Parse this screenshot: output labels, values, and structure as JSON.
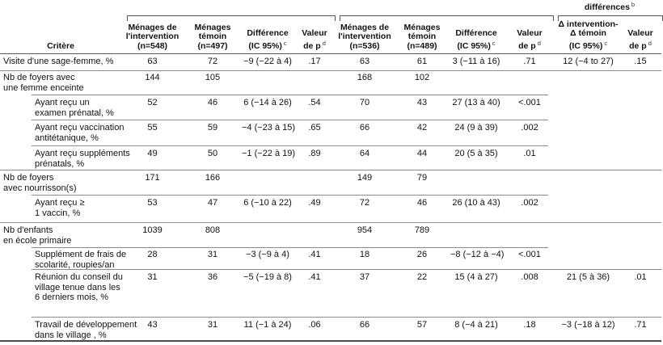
{
  "spanner": {
    "text": "différences",
    "sup": "b"
  },
  "header": {
    "criterion": "Critère",
    "g1_int": "Ménages de\nl'intervention\n(n=548)",
    "g1_tem": "Ménages\ntémoin\n(n=497)",
    "g1_diff": "Différence\n(IC 95%)",
    "g1_diff_sup": "c",
    "g1_p": "Valeur\nde p",
    "g1_p_sup": "d",
    "g2_int": "Ménages de\nl'intervention\n(n=536)",
    "g2_tem": "Ménages\ntémoin\n(n=489)",
    "g2_diff": "Différence\n(IC 95%)",
    "g2_diff_sup": "c",
    "g2_p": "Valeur\nde p",
    "g2_p_sup": "d",
    "g3_dd": "Δ intervention-\nΔ témoin\n(IC 95%)",
    "g3_dd_sup": "c",
    "g3_p": "Valeur\nde p",
    "g3_p_sup": "d"
  },
  "rows": [
    {
      "label": "Visite d'une sage-femme, %",
      "c": [
        "63",
        "72",
        "−9 (−22 à 4)",
        ".17",
        "63",
        "61",
        "3 (−11 à 16)",
        ".71",
        "12 (−4 to 27)",
        ".15"
      ]
    },
    {
      "label": "Nb de foyers avec\nune femme enceinte",
      "c": [
        "144",
        "105",
        "",
        "",
        "168",
        "102",
        "",
        "",
        "",
        ""
      ]
    },
    {
      "label": "Ayant reçu un\nexamen prénatal, %",
      "c": [
        "52",
        "46",
        "6 (−14 à 26)",
        ".54",
        "70",
        "43",
        "27 (13 à 40)",
        "<.001",
        "",
        ""
      ]
    },
    {
      "label": "Ayant reçu vaccination\nantitétanique, %",
      "c": [
        "55",
        "59",
        "−4 (−23 à 15)",
        ".65",
        "66",
        "42",
        "24 (9 à 39)",
        ".002",
        "",
        ""
      ]
    },
    {
      "label": "Ayant reçu suppléments\nprénatals, %",
      "c": [
        "49",
        "50",
        "−1 (−22 à 19)",
        ".89",
        "64",
        "44",
        "20 (5 à 35)",
        ".01",
        "",
        ""
      ]
    },
    {
      "label": "Nb de foyers\navec nourrisson(s)",
      "c": [
        "171",
        "166",
        "",
        "",
        "149",
        "79",
        "",
        "",
        "",
        ""
      ]
    },
    {
      "label": "Ayant reçu ≥\n1 vaccin, %",
      "c": [
        "53",
        "47",
        "6 (−10 à 22)",
        ".49",
        "72",
        "46",
        "26 (10 à 43)",
        ".002",
        "",
        ""
      ]
    },
    {
      "label": "Nb d'enfants\nen école primaire",
      "c": [
        "1039",
        "808",
        "",
        "",
        "954",
        "789",
        "",
        "",
        "",
        ""
      ]
    },
    {
      "label": "Supplément de frais de\nscolarité, roupies/an",
      "c": [
        "28",
        "31",
        "−3 (−9 à 4)",
        ".41",
        "18",
        "26",
        "−8 (−12 à −4)",
        "<.001",
        "",
        ""
      ]
    },
    {
      "label": "Réunion du conseil du\nvillage tenue dans les\n6 derniers mois, %",
      "c": [
        "31",
        "36",
        "−5 (−19 à 8)",
        ".41",
        "37",
        "22",
        "15 (4 à 27)",
        ".008",
        "21 (5 à 36)",
        ".01"
      ]
    },
    {
      "label": "Travail de développement\ndans le village , %",
      "c": [
        "43",
        "31",
        "11 (−1 à 24)",
        ".06",
        "66",
        "57",
        "8 (−4 à 21)",
        ".18",
        "−3 (−18 à 12)",
        ".71"
      ]
    }
  ]
}
